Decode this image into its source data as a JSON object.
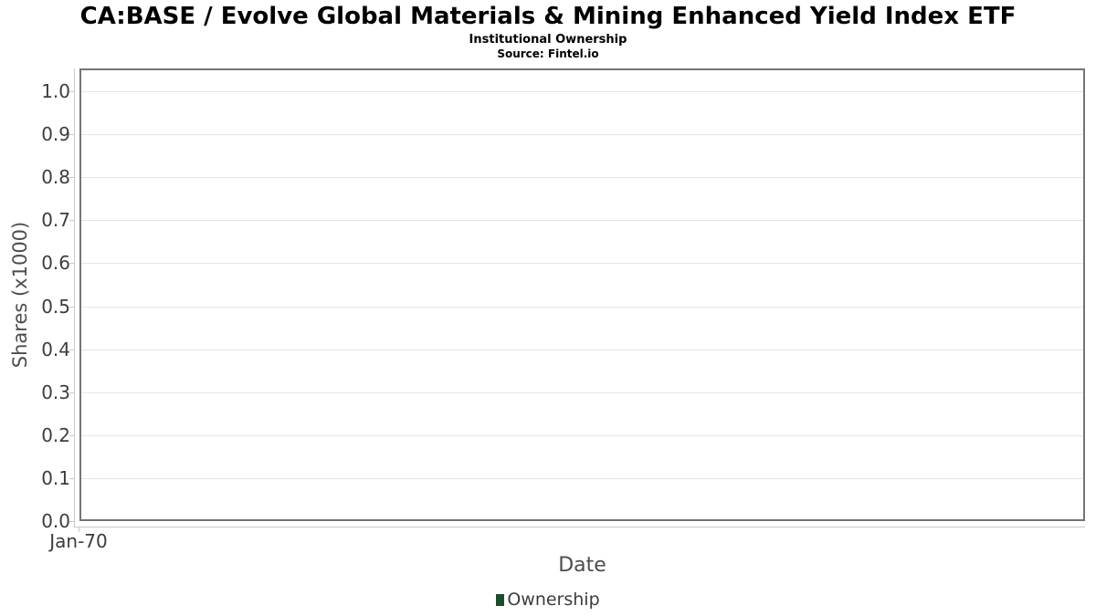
{
  "title": "CA:BASE / Evolve Global Materials & Mining Enhanced Yield Index ETF",
  "subtitle": "Institutional Ownership",
  "source": "Source: Fintel.io",
  "axes": {
    "x_label": "Date",
    "y_label": "Shares (x1000)"
  },
  "legend": {
    "items": [
      {
        "label": "Ownership",
        "color": "#1d4e2c"
      }
    ]
  },
  "chart_data": {
    "type": "line",
    "title": "CA:BASE / Evolve Global Materials & Mining Enhanced Yield Index ETF",
    "subtitle": "Institutional Ownership",
    "source": "Source: Fintel.io",
    "xlabel": "Date",
    "ylabel": "Shares (x1000)",
    "x_tick_labels": [
      "Jan-70"
    ],
    "y_tick_values": [
      0.0,
      0.1,
      0.2,
      0.3,
      0.4,
      0.5,
      0.6,
      0.7,
      0.8,
      0.9,
      1.0
    ],
    "y_tick_format": "one-decimal",
    "ylim": [
      0.0,
      1.05
    ],
    "grid": true,
    "legend_position": "bottom",
    "series": [
      {
        "name": "Ownership",
        "color": "#1d4e2c",
        "x": [],
        "values": []
      }
    ]
  },
  "colors": {
    "background": "#ffffff",
    "title_text": "#000000",
    "plot_border": "#747474",
    "gridline": "#e5e5e5",
    "axis_line": "#c9c9c9",
    "tick_text": "#3d3d3d",
    "axis_title_text": "#4d4d4d",
    "legend_text": "#3d3d3d",
    "series_green": "#1d4e2c"
  }
}
